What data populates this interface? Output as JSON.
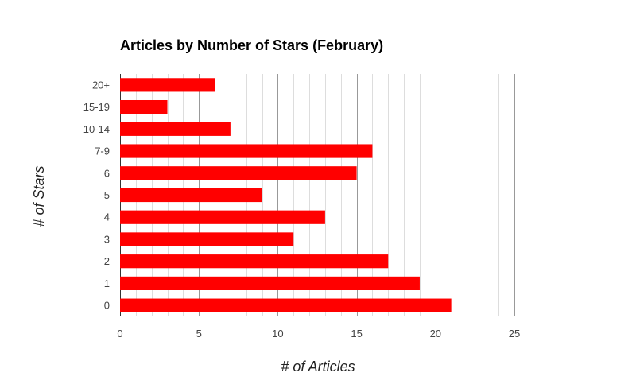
{
  "chart_data": {
    "type": "bar",
    "orientation": "horizontal",
    "title": "Articles by Number of Stars (February)",
    "xlabel": "# of Articles",
    "ylabel": "# of Stars",
    "categories": [
      "20+",
      "15-19",
      "10-14",
      "7-9",
      "6",
      "5",
      "4",
      "3",
      "2",
      "1",
      "0"
    ],
    "values": [
      6,
      3,
      7,
      16,
      15,
      9,
      13,
      11,
      17,
      19,
      21
    ],
    "xlim": [
      0,
      25
    ],
    "xticks": [
      "0",
      "5",
      "10",
      "15",
      "20",
      "25"
    ],
    "grid": true,
    "bar_color": "#ff0000"
  }
}
